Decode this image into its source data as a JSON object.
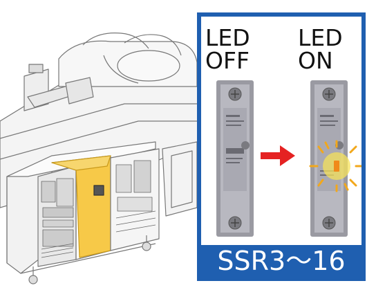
{
  "panel": {
    "left_label_line1": "LED",
    "left_label_line2": "OFF",
    "right_label_line1": "LED",
    "right_label_line2": "ON",
    "caption": "SSR3～16"
  },
  "colors": {
    "panel_blue": "#1f5fb0",
    "highlight_yellow": "#f7c948",
    "arrow_red": "#e52222",
    "led_orange": "#f08a1a"
  },
  "icons": [
    "right-arrow-icon",
    "led-glow-icon"
  ]
}
